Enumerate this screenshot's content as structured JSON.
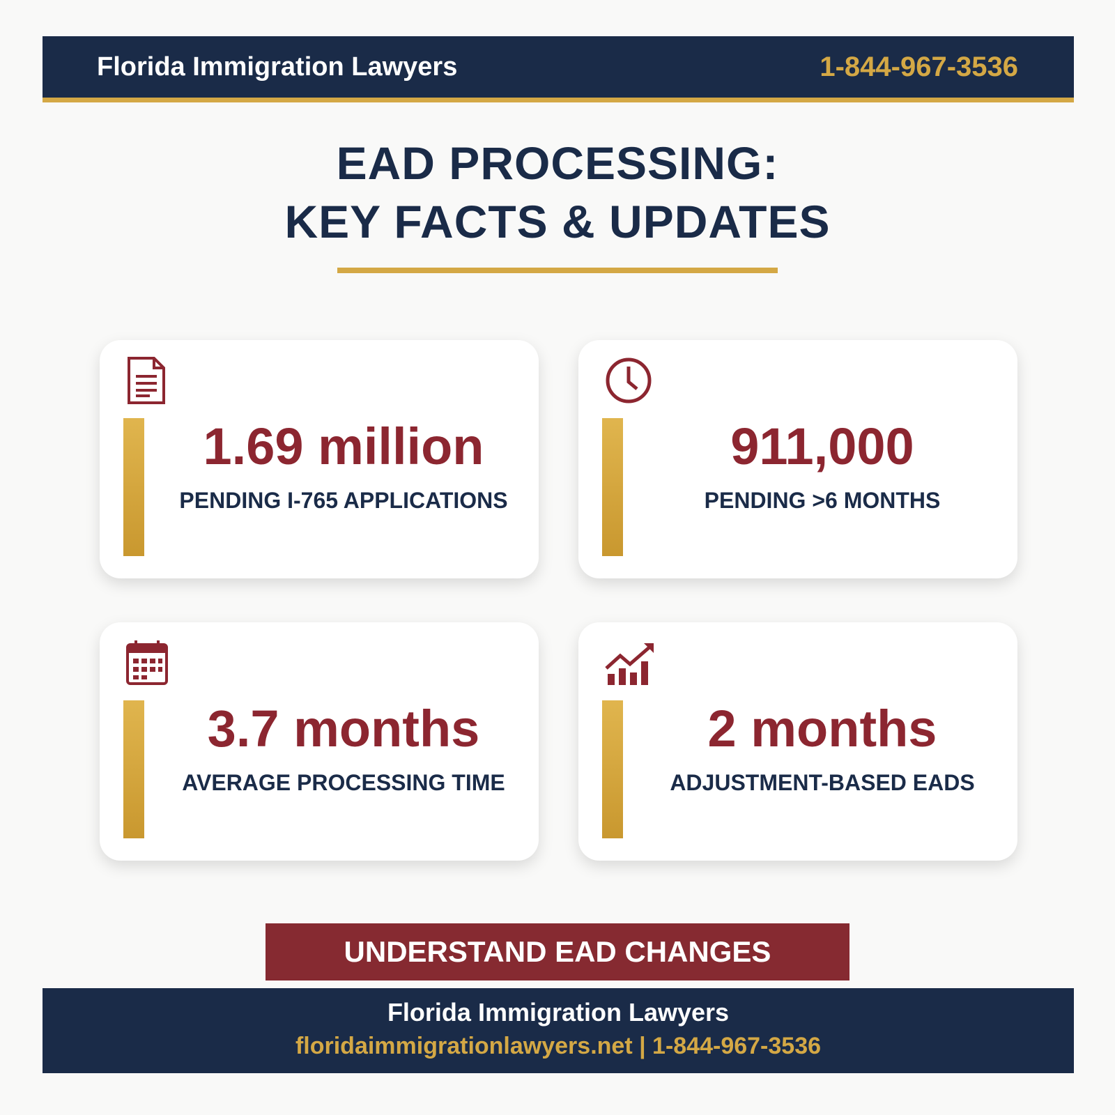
{
  "header": {
    "brand": "Florida Immigration Lawyers",
    "phone": "1-844-967-3536"
  },
  "title": {
    "line1": "EAD PROCESSING:",
    "line2": "KEY FACTS & UPDATES"
  },
  "cards": [
    {
      "value": "1.69 million",
      "label": "PENDING I-765 APPLICATIONS"
    },
    {
      "value": "911,000",
      "label": "PENDING >6 MONTHS"
    },
    {
      "value": "3.7 months",
      "label": "AVERAGE PROCESSING TIME"
    },
    {
      "value": "2 months",
      "label": "ADJUSTMENT-BASED EADS"
    }
  ],
  "cta": "UNDERSTAND EAD CHANGES",
  "footer": {
    "brand": "Florida Immigration Lawyers",
    "contact": "floridaimmigrationlawyers.net | 1-844-967-3536"
  }
}
